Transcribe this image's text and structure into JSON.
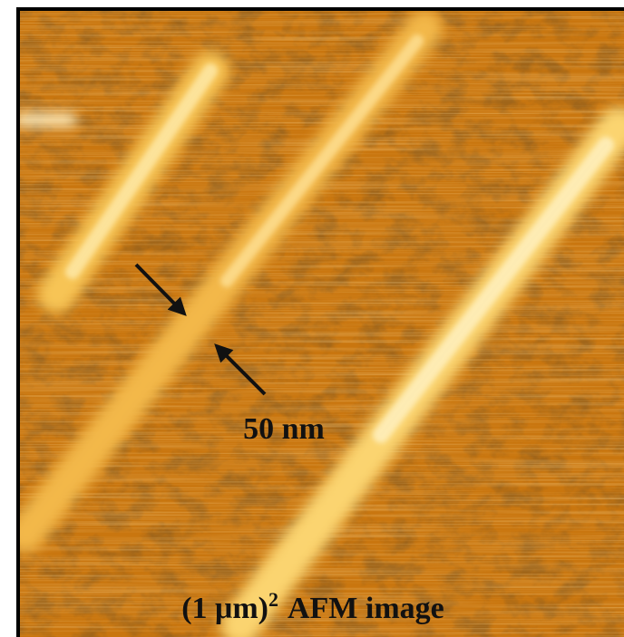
{
  "scale_label": "50 nm",
  "caption": {
    "base": "(1 μm)",
    "sup": "2",
    "rest": "AFM image"
  }
}
